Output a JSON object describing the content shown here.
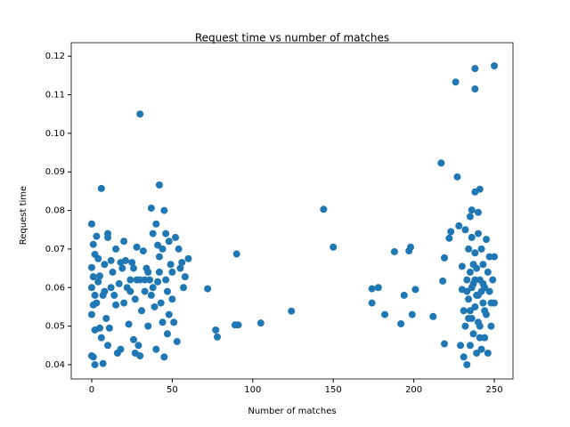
{
  "chart_data": {
    "type": "scatter",
    "title": "Request time vs number of matches",
    "x_label": "Number of matches",
    "y_label": "Request time",
    "color": "#1f77b4",
    "grid": false,
    "xlim": [
      -12.7,
      261.6
    ],
    "ylim": [
      0.0363,
      0.1235
    ],
    "xticks": [
      0,
      50,
      100,
      150,
      200,
      250
    ],
    "yticks": [
      0.04,
      0.05,
      0.06,
      0.07,
      0.08,
      0.09,
      {
        "value": 0.1,
        "label": "0.10"
      },
      0.11,
      0.12
    ],
    "x": [
      30,
      6,
      42,
      37,
      144,
      150,
      90,
      72,
      77,
      78,
      89,
      91,
      105,
      124,
      174,
      174,
      178,
      182,
      188,
      192,
      194,
      197,
      198,
      199,
      201,
      212,
      217,
      218,
      219,
      219,
      222,
      223,
      226,
      227,
      238,
      238,
      250,
      238,
      241,
      236,
      240,
      235,
      0,
      0,
      1,
      1,
      2,
      2,
      0,
      1,
      0,
      2,
      1,
      0,
      2,
      3,
      4,
      4,
      5,
      6,
      7,
      8,
      9,
      10,
      10,
      10,
      11,
      12,
      13,
      14,
      15,
      16,
      17,
      18,
      18,
      20,
      20,
      21,
      22,
      23,
      24,
      25,
      26,
      27,
      27,
      28,
      29,
      30,
      30,
      31,
      32,
      33,
      34,
      35,
      36,
      38,
      38,
      39,
      40,
      40,
      41,
      42,
      42,
      43,
      44,
      44,
      45,
      45,
      46,
      46,
      47,
      48,
      48,
      49,
      50,
      50,
      51,
      52,
      53,
      54,
      55,
      56,
      57,
      58,
      60,
      5,
      7,
      12,
      15,
      19,
      24,
      28,
      33,
      37,
      41,
      47,
      3,
      8,
      26,
      35,
      228,
      229,
      230,
      230,
      231,
      231,
      232,
      232,
      233,
      233,
      234,
      234,
      235,
      235,
      236,
      236,
      237,
      237,
      238,
      238,
      239,
      239,
      240,
      240,
      241,
      241,
      242,
      242,
      243,
      243,
      244,
      244,
      245,
      245,
      246,
      246,
      247,
      247,
      248,
      248,
      249,
      250,
      250,
      233,
      234,
      236,
      238,
      240,
      242,
      244,
      239,
      237,
      235,
      241,
      243
    ],
    "y": [
      0.105,
      0.0857,
      0.0866,
      0.0806,
      0.0803,
      0.0705,
      0.0687,
      0.0597,
      0.049,
      0.0472,
      0.0503,
      0.0503,
      0.0508,
      0.0539,
      0.0597,
      0.056,
      0.06,
      0.053,
      0.0693,
      0.0506,
      0.058,
      0.0695,
      0.0705,
      0.053,
      0.0595,
      0.0525,
      0.0923,
      0.0617,
      0.0454,
      0.0677,
      0.0728,
      0.0745,
      0.1133,
      0.0887,
      0.1168,
      0.1115,
      0.1175,
      0.0848,
      0.0855,
      0.0801,
      0.0795,
      0.0784,
      0.0765,
      0.0423,
      0.042,
      0.0712,
      0.04,
      0.0686,
      0.0652,
      0.0628,
      0.06,
      0.058,
      0.0555,
      0.053,
      0.049,
      0.0733,
      0.0675,
      0.0615,
      0.0495,
      0.047,
      0.0403,
      0.059,
      0.052,
      0.074,
      0.073,
      0.045,
      0.0495,
      0.067,
      0.064,
      0.058,
      0.07,
      0.043,
      0.061,
      0.044,
      0.0665,
      0.072,
      0.056,
      0.067,
      0.06,
      0.0505,
      0.062,
      0.0665,
      0.0465,
      0.043,
      0.057,
      0.0705,
      0.045,
      0.062,
      0.0423,
      0.054,
      0.0695,
      0.059,
      0.065,
      0.05,
      0.062,
      0.074,
      0.06,
      0.055,
      0.0765,
      0.044,
      0.071,
      0.068,
      0.064,
      0.056,
      0.051,
      0.07,
      0.042,
      0.08,
      0.074,
      0.062,
      0.048,
      0.053,
      0.072,
      0.066,
      0.057,
      0.064,
      0.051,
      0.073,
      0.046,
      0.07,
      0.065,
      0.0665,
      0.06,
      0.0628,
      0.0675,
      0.063,
      0.058,
      0.06,
      0.0555,
      0.065,
      0.059,
      0.062,
      0.062,
      0.058,
      0.0615,
      0.059,
      0.056,
      0.066,
      0.065,
      0.064,
      0.076,
      0.045,
      0.0655,
      0.0595,
      0.042,
      0.054,
      0.075,
      0.05,
      0.04,
      0.062,
      0.07,
      0.057,
      0.045,
      0.064,
      0.052,
      0.073,
      0.061,
      0.048,
      0.069,
      0.055,
      0.043,
      0.065,
      0.058,
      0.074,
      0.05,
      0.062,
      0.044,
      0.07,
      0.056,
      0.066,
      0.047,
      0.06,
      0.0725,
      0.053,
      0.064,
      0.043,
      0.059,
      0.068,
      0.05,
      0.056,
      0.062,
      0.068,
      0.056,
      0.059,
      0.052,
      0.06,
      0.062,
      0.051,
      0.059,
      0.054,
      0.058,
      0.066,
      0.054,
      0.047,
      0.061
    ]
  }
}
